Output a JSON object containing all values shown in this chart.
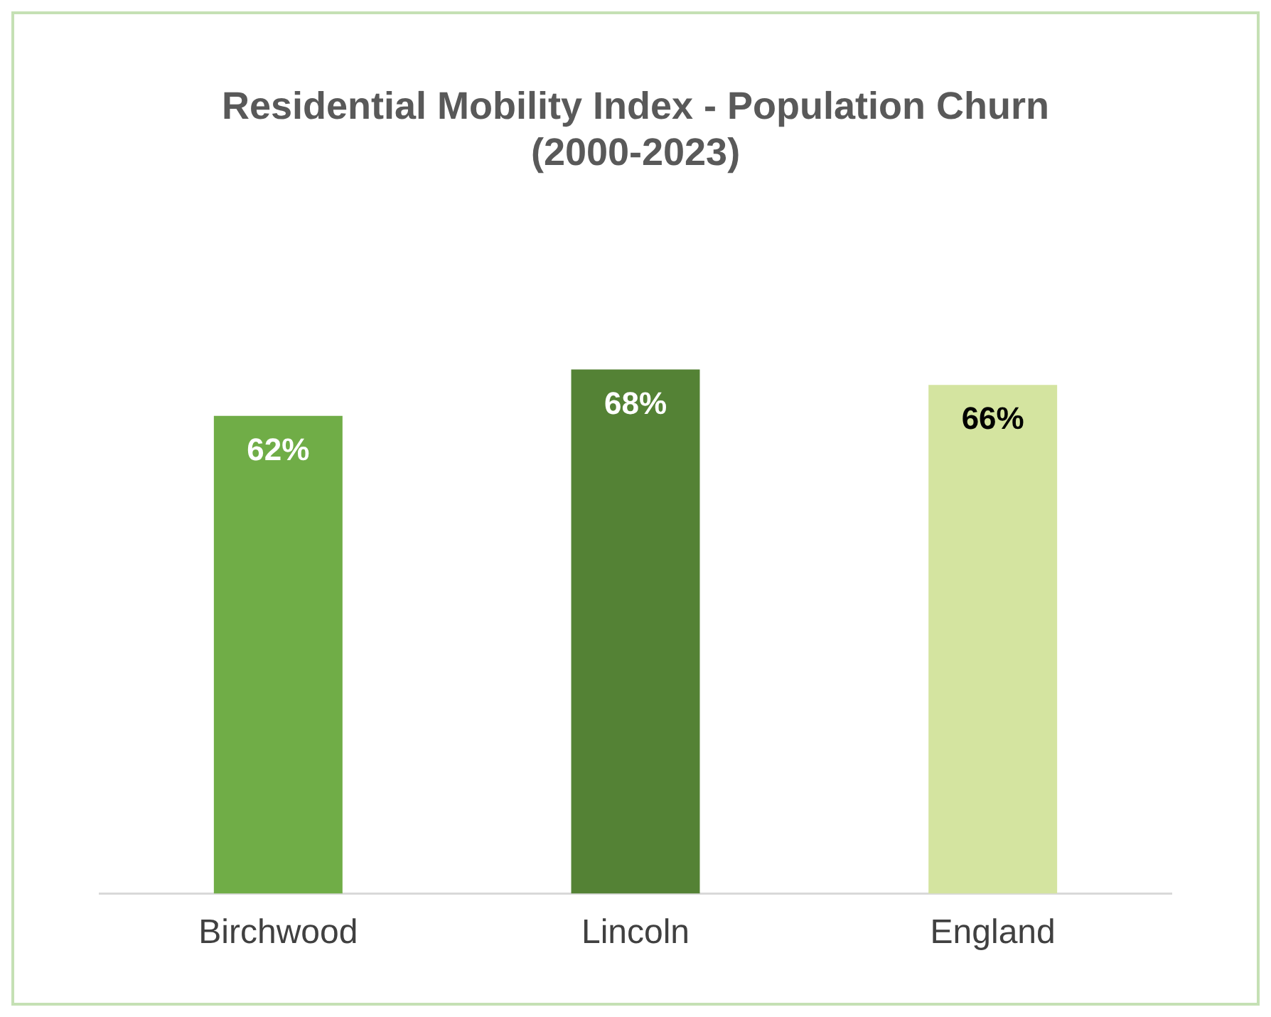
{
  "chart_data": {
    "type": "bar",
    "title": "Residential Mobility Index - Population Churn (2000-2023)",
    "categories": [
      "Birchwood",
      "Lincoln",
      "England"
    ],
    "values": [
      62,
      68,
      66
    ],
    "colors": [
      "#70ad47",
      "#548235",
      "#d4e4a0"
    ],
    "value_labels": [
      "62%",
      "68%",
      "66%"
    ],
    "grid": false,
    "legend": false
  }
}
